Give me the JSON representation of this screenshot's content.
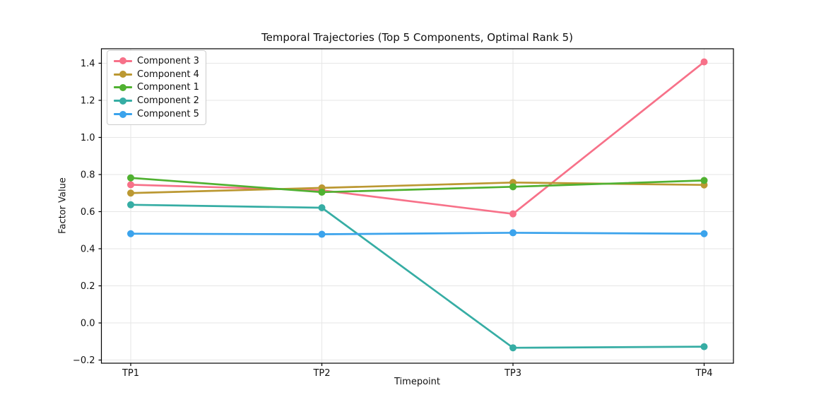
{
  "figure": {
    "background": "#ffffff",
    "text_color": "#111111",
    "grid_color": "#e6e6e6",
    "spine_color": "#000000"
  },
  "chart_data": {
    "type": "line",
    "title": "Temporal Trajectories (Top 5 Components, Optimal Rank 5)",
    "xlabel": "Timepoint",
    "ylabel": "Factor Value",
    "x_categories": [
      "TP1",
      "TP2",
      "TP3",
      "TP4"
    ],
    "ytick_values": [
      -0.2,
      0.0,
      0.2,
      0.4,
      0.6,
      0.8,
      1.0,
      1.2,
      1.4
    ],
    "ytick_labels": [
      "−0.2",
      "0.0",
      "0.2",
      "0.4",
      "0.6",
      "0.8",
      "1.0",
      "1.2",
      "1.4"
    ],
    "ylim": [
      -0.217,
      1.478
    ],
    "grid": true,
    "legend_position": "upper left",
    "marker": "circle",
    "series": [
      {
        "name": "Component 3",
        "color": "#f77189",
        "values": [
          0.745,
          0.715,
          0.588,
          1.407
        ]
      },
      {
        "name": "Component 4",
        "color": "#bb9832",
        "values": [
          0.7,
          0.728,
          0.757,
          0.744
        ]
      },
      {
        "name": "Component 1",
        "color": "#50b131",
        "values": [
          0.782,
          0.705,
          0.734,
          0.768
        ]
      },
      {
        "name": "Component 2",
        "color": "#36ada4",
        "values": [
          0.637,
          0.621,
          -0.134,
          -0.128
        ]
      },
      {
        "name": "Component 5",
        "color": "#3ba3ec",
        "values": [
          0.481,
          0.478,
          0.486,
          0.481
        ]
      }
    ]
  }
}
